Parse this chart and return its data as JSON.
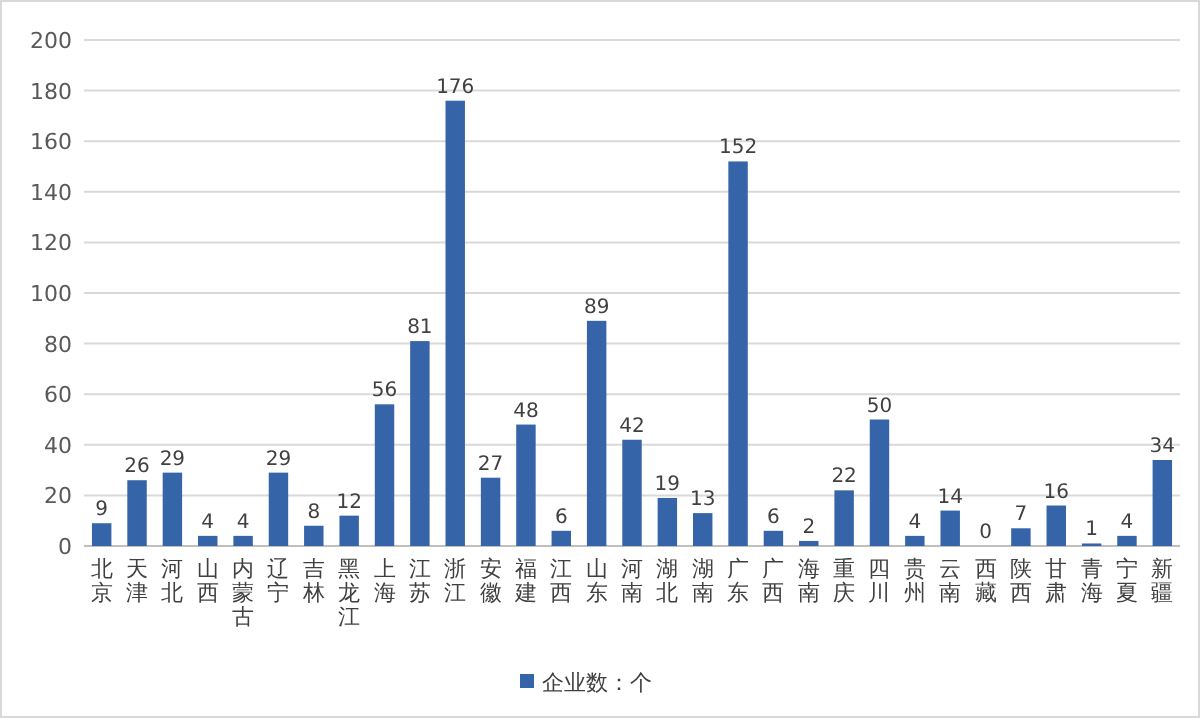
{
  "chart_data": {
    "type": "bar",
    "categories": [
      "北京",
      "天津",
      "河北",
      "山西",
      "内蒙古",
      "辽宁",
      "吉林",
      "黑龙江",
      "上海",
      "江苏",
      "浙江",
      "安徽",
      "福建",
      "江西",
      "山东",
      "河南",
      "湖北",
      "湖南",
      "广东",
      "广西",
      "海南",
      "重庆",
      "四川",
      "贵州",
      "云南",
      "西藏",
      "陕西",
      "甘肃",
      "青海",
      "宁夏",
      "新疆"
    ],
    "series": [
      {
        "name": "企业数：个",
        "color": "#3565a8",
        "values": [
          9,
          26,
          29,
          4,
          4,
          29,
          8,
          12,
          56,
          81,
          176,
          27,
          48,
          6,
          89,
          42,
          19,
          13,
          152,
          6,
          2,
          22,
          50,
          4,
          14,
          0,
          7,
          16,
          1,
          4,
          34
        ]
      }
    ],
    "ylim": [
      0,
      200
    ],
    "yticks": [
      0,
      20,
      40,
      60,
      80,
      100,
      120,
      140,
      160,
      180,
      200
    ],
    "grid": "y",
    "legend": "bottom",
    "data_labels": true
  }
}
